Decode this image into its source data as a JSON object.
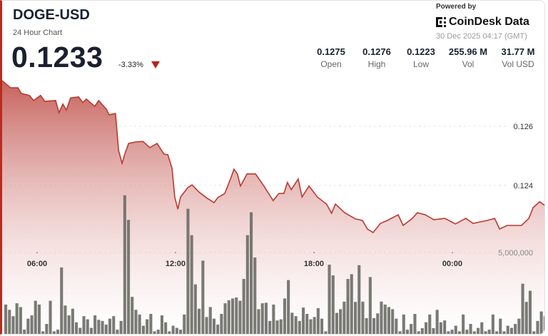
{
  "header": {
    "symbol": "DOGE-USD",
    "subtitle": "24 Hour Chart",
    "price": "0.1233",
    "change": "-3.33%",
    "change_direction": "down",
    "down_color": "#b3261e"
  },
  "stats": [
    {
      "value": "0.1275",
      "label": "Open"
    },
    {
      "value": "0.1276",
      "label": "High"
    },
    {
      "value": "0.1223",
      "label": "Low"
    },
    {
      "value": "255.96 M",
      "label": "Vol"
    },
    {
      "value": "31.77 M",
      "label": "Vol USD"
    }
  ],
  "branding": {
    "powered_by": "Powered by",
    "brand": "CoinDesk Data",
    "logo_icon": "coindesk-logo-icon",
    "timestamp": "30 Dec 2025 04:17 (GMT)"
  },
  "chart_data": {
    "type": "area",
    "line_color": "#b83a30",
    "fill_color": "#c45a54",
    "volume_color": "#6b6b66",
    "grid": "dotted horizontal",
    "x_ticks": [
      "06:00",
      "12:00",
      "18:00",
      "00:00"
    ],
    "y_ticks": [
      {
        "value": 0.126,
        "label": "0.126"
      },
      {
        "value": 0.124,
        "label": "0.124"
      }
    ],
    "volume_ticks": [
      {
        "value": 5000000,
        "label": "5,000,000"
      }
    ],
    "price_series": [
      [
        "04:29",
        0.12754
      ],
      [
        "04:51",
        0.1273
      ],
      [
        "05:10",
        0.1273
      ],
      [
        "05:19",
        0.12711
      ],
      [
        "05:40",
        0.12704
      ],
      [
        "05:51",
        0.12687
      ],
      [
        "06:09",
        0.12704
      ],
      [
        "06:20",
        0.12684
      ],
      [
        "06:48",
        0.12687
      ],
      [
        "06:57",
        0.12646
      ],
      [
        "07:07",
        0.12675
      ],
      [
        "07:16",
        0.12655
      ],
      [
        "07:27",
        0.12696
      ],
      [
        "07:48",
        0.12699
      ],
      [
        "07:59",
        0.1268
      ],
      [
        "08:08",
        0.12692
      ],
      [
        "08:30",
        0.12667
      ],
      [
        "08:40",
        0.12687
      ],
      [
        "09:00",
        0.12658
      ],
      [
        "09:07",
        0.12639
      ],
      [
        "09:24",
        0.12643
      ],
      [
        "09:32",
        0.12518
      ],
      [
        "09:41",
        0.12475
      ],
      [
        "09:48",
        0.12506
      ],
      [
        "09:58",
        0.12542
      ],
      [
        "10:16",
        0.12547
      ],
      [
        "10:35",
        0.12549
      ],
      [
        "10:53",
        0.12528
      ],
      [
        "11:12",
        0.12542
      ],
      [
        "11:30",
        0.12506
      ],
      [
        "11:40",
        0.12504
      ],
      [
        "11:51",
        0.12458
      ],
      [
        "11:58",
        0.12361
      ],
      [
        "12:06",
        0.1232
      ],
      [
        "12:13",
        0.12361
      ],
      [
        "12:32",
        0.12393
      ],
      [
        "12:43",
        0.12402
      ],
      [
        "13:01",
        0.12378
      ],
      [
        "13:22",
        0.12357
      ],
      [
        "13:40",
        0.12342
      ],
      [
        "13:50",
        0.12359
      ],
      [
        "14:08",
        0.12373
      ],
      [
        "14:23",
        0.12422
      ],
      [
        "14:32",
        0.12455
      ],
      [
        "14:41",
        0.12439
      ],
      [
        "14:49",
        0.12398
      ],
      [
        "15:06",
        0.12439
      ],
      [
        "15:28",
        0.12439
      ],
      [
        "15:50",
        0.12398
      ],
      [
        "16:14",
        0.12349
      ],
      [
        "16:29",
        0.12373
      ],
      [
        "16:42",
        0.12373
      ],
      [
        "16:51",
        0.1241
      ],
      [
        "17:01",
        0.12386
      ],
      [
        "17:19",
        0.12422
      ],
      [
        "17:29",
        0.12361
      ],
      [
        "17:47",
        0.12398
      ],
      [
        "18:09",
        0.12361
      ],
      [
        "18:33",
        0.12337
      ],
      [
        "18:46",
        0.12306
      ],
      [
        "18:56",
        0.12337
      ],
      [
        "19:20",
        0.12308
      ],
      [
        "19:48",
        0.12287
      ],
      [
        "20:06",
        0.12282
      ],
      [
        "20:19",
        0.12253
      ],
      [
        "20:34",
        0.12241
      ],
      [
        "20:53",
        0.12272
      ],
      [
        "21:11",
        0.12282
      ],
      [
        "21:39",
        0.12301
      ],
      [
        "21:52",
        0.12265
      ],
      [
        "22:16",
        0.12289
      ],
      [
        "22:29",
        0.12308
      ],
      [
        "22:50",
        0.12301
      ],
      [
        "23:12",
        0.12284
      ],
      [
        "23:40",
        0.12289
      ],
      [
        "00:08",
        0.1227
      ],
      [
        "00:35",
        0.12289
      ],
      [
        "00:54",
        0.12272
      ],
      [
        "01:13",
        0.12277
      ],
      [
        "01:31",
        0.12282
      ],
      [
        "01:50",
        0.12289
      ],
      [
        "02:03",
        0.12253
      ],
      [
        "02:23",
        0.12265
      ],
      [
        "03:00",
        0.12265
      ],
      [
        "03:19",
        0.12289
      ],
      [
        "03:30",
        0.12325
      ],
      [
        "03:47",
        0.12345
      ],
      [
        "04:03",
        0.1233
      ]
    ],
    "volume_millions": [
      1.83,
      1.51,
      1.12,
      1.91,
      1.68,
      0.3,
      0.97,
      1.17,
      2.06,
      1.83,
      0.2,
      0.65,
      2.06,
      0.2,
      0.3,
      4.09,
      1.77,
      1.17,
      1.58,
      0.75,
      0.41,
      1.12,
      0.93,
      0.41,
      1.17,
      0.9,
      0.83,
      0.61,
      0.97,
      1.12,
      0.3,
      0.83,
      8.49,
      6.99,
      2.3,
      1.51,
      1.22,
      0.54,
      0.93,
      1.26,
      0.2,
      0.3,
      1.17,
      0.75,
      0.2,
      0.54,
      0.41,
      0.3,
      1.22,
      7.67,
      6.06,
      3.06,
      1.58,
      4.51,
      1.07,
      1.68,
      0.97,
      0.61,
      1.26,
      1.91,
      2.09,
      2.2,
      2.26,
      2.06,
      3.39,
      6.06,
      7.45,
      4.7,
      1.55,
      1.91,
      1.94,
      0.83,
      1.83,
      0.86,
      0.93,
      2.2,
      3.32,
      1.33,
      1.12,
      0.83,
      1.65,
      1.26,
      0.93,
      1.07,
      1.61,
      0.97,
      0.2,
      4.26,
      3.61,
      1.32,
      1.55,
      2.01,
      3.39,
      3.68,
      1.99,
      4.23,
      2.01,
      1.0,
      3.51,
      1.0,
      1.29,
      2.01,
      1.83,
      1.68,
      1.55,
      0.97,
      0.2,
      1.22,
      0.3,
      0.65,
      1.26,
      0.2,
      0.39,
      0.75,
      1.22,
      0.39,
      1.51,
      0.75,
      0.86,
      0.2,
      0.3,
      0.54,
      0.2,
      1.22,
      0.3,
      0.65,
      0.2,
      0.41,
      0.75,
      0.2,
      0.3,
      1.22,
      0.2,
      0.97,
      0.2,
      0.54,
      0.41,
      0.65,
      0.97,
      3.1,
      1.99,
      2.67,
      0.2,
      0.83,
      1.41,
      1.12
    ]
  }
}
